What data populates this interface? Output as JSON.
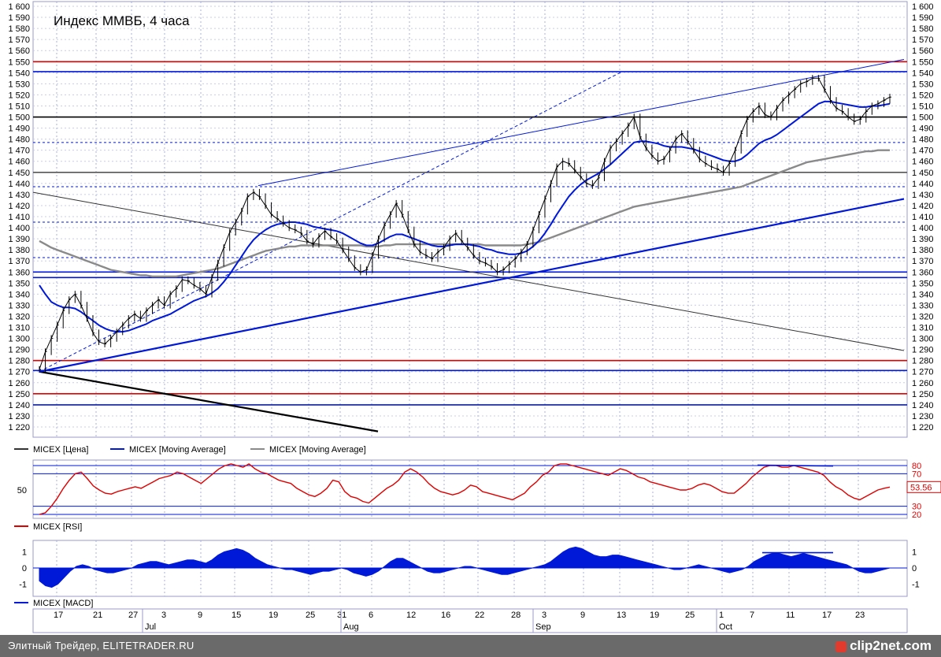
{
  "chart_data": [
    {
      "type": "line",
      "title": "Индекс ММВБ, 4 часа",
      "ylim": [
        1215,
        1600
      ],
      "yticks": [
        1220,
        1230,
        1240,
        1250,
        1260,
        1270,
        1280,
        1290,
        1300,
        1310,
        1320,
        1330,
        1340,
        1350,
        1360,
        1370,
        1380,
        1390,
        1400,
        1410,
        1420,
        1430,
        1440,
        1450,
        1460,
        1470,
        1480,
        1490,
        1500,
        1510,
        1520,
        1530,
        1540,
        1550,
        1560,
        1570,
        1580,
        1590,
        1600
      ],
      "x_ticks": [
        "17",
        "21",
        "27",
        "3",
        "9",
        "15",
        "19",
        "25",
        "31",
        "6",
        "12",
        "16",
        "22",
        "28",
        "3",
        "9",
        "13",
        "19",
        "25",
        "1",
        "7",
        "11",
        "17",
        "23"
      ],
      "months": [
        "Jul",
        "Aug",
        "Sep",
        "Oct"
      ],
      "grid": true,
      "legend": [
        "MICEX [Цена]",
        "MICEX [Moving Average]",
        "MICEX [Moving Average]"
      ],
      "series": [
        {
          "name": "MICEX [Цена]",
          "color": "#000000",
          "values": [
            1272,
            1288,
            1300,
            1312,
            1325,
            1335,
            1340,
            1330,
            1318,
            1305,
            1297,
            1295,
            1300,
            1306,
            1312,
            1318,
            1322,
            1318,
            1325,
            1330,
            1335,
            1330,
            1340,
            1345,
            1353,
            1352,
            1348,
            1345,
            1340,
            1355,
            1368,
            1382,
            1396,
            1405,
            1415,
            1428,
            1432,
            1428,
            1420,
            1412,
            1408,
            1404,
            1400,
            1398,
            1395,
            1388,
            1385,
            1392,
            1397,
            1392,
            1388,
            1380,
            1372,
            1364,
            1360,
            1362,
            1375,
            1390,
            1402,
            1412,
            1422,
            1412,
            1398,
            1385,
            1378,
            1375,
            1372,
            1378,
            1382,
            1390,
            1395,
            1388,
            1382,
            1375,
            1370,
            1368,
            1365,
            1360,
            1362,
            1367,
            1372,
            1378,
            1385,
            1398,
            1412,
            1426,
            1440,
            1455,
            1460,
            1458,
            1452,
            1446,
            1440,
            1438,
            1445,
            1460,
            1472,
            1478,
            1485,
            1492,
            1500,
            1482,
            1472,
            1465,
            1460,
            1462,
            1470,
            1480,
            1485,
            1478,
            1470,
            1462,
            1458,
            1455,
            1453,
            1450,
            1458,
            1470,
            1485,
            1498,
            1505,
            1510,
            1502,
            1500,
            1508,
            1515,
            1520,
            1525,
            1530,
            1532,
            1535,
            1535,
            1525,
            1515,
            1508,
            1505,
            1500,
            1496,
            1498,
            1505,
            1510,
            1512,
            1515,
            1518
          ]
        },
        {
          "name": "MICEX [Moving Average]",
          "color": "#0018d8",
          "values": [
            1348,
            1340,
            1333,
            1330,
            1328,
            1328,
            1327,
            1324,
            1320,
            1316,
            1312,
            1309,
            1307,
            1306,
            1306,
            1307,
            1309,
            1311,
            1313,
            1316,
            1318,
            1320,
            1322,
            1325,
            1328,
            1331,
            1334,
            1336,
            1338,
            1341,
            1345,
            1351,
            1358,
            1366,
            1374,
            1382,
            1389,
            1394,
            1398,
            1401,
            1403,
            1404,
            1405,
            1405,
            1404,
            1403,
            1401,
            1400,
            1399,
            1398,
            1397,
            1395,
            1392,
            1389,
            1386,
            1384,
            1384,
            1386,
            1389,
            1392,
            1394,
            1394,
            1392,
            1390,
            1388,
            1386,
            1384,
            1383,
            1383,
            1384,
            1385,
            1385,
            1385,
            1384,
            1383,
            1381,
            1380,
            1378,
            1377,
            1376,
            1376,
            1377,
            1379,
            1383,
            1388,
            1395,
            1403,
            1412,
            1420,
            1428,
            1434,
            1439,
            1443,
            1446,
            1449,
            1453,
            1457,
            1462,
            1467,
            1472,
            1477,
            1478,
            1478,
            1477,
            1476,
            1474,
            1473,
            1473,
            1473,
            1472,
            1471,
            1469,
            1467,
            1465,
            1463,
            1461,
            1460,
            1460,
            1462,
            1466,
            1471,
            1476,
            1479,
            1481,
            1484,
            1488,
            1492,
            1496,
            1500,
            1504,
            1508,
            1512,
            1514,
            1514,
            1513,
            1512,
            1511,
            1510,
            1509,
            1509,
            1510,
            1510,
            1511,
            1512
          ]
        },
        {
          "name": "MICEX [Moving Average]",
          "color": "#8a8a8a",
          "values": [
            1388,
            1385,
            1382,
            1380,
            1378,
            1376,
            1374,
            1372,
            1370,
            1368,
            1366,
            1364,
            1362,
            1361,
            1360,
            1359,
            1358,
            1357,
            1357,
            1356,
            1356,
            1356,
            1356,
            1356,
            1357,
            1358,
            1359,
            1360,
            1361,
            1362,
            1363,
            1365,
            1367,
            1369,
            1371,
            1373,
            1375,
            1377,
            1379,
            1380,
            1381,
            1382,
            1383,
            1383,
            1384,
            1384,
            1384,
            1384,
            1384,
            1384,
            1384,
            1384,
            1384,
            1384,
            1384,
            1383,
            1383,
            1383,
            1384,
            1384,
            1385,
            1385,
            1385,
            1385,
            1385,
            1385,
            1385,
            1385,
            1385,
            1385,
            1385,
            1385,
            1385,
            1385,
            1385,
            1384,
            1384,
            1384,
            1384,
            1384,
            1384,
            1384,
            1385,
            1386,
            1387,
            1389,
            1391,
            1393,
            1395,
            1397,
            1399,
            1401,
            1403,
            1405,
            1407,
            1409,
            1411,
            1413,
            1415,
            1417,
            1419,
            1420,
            1421,
            1422,
            1423,
            1424,
            1425,
            1426,
            1427,
            1428,
            1429,
            1430,
            1431,
            1432,
            1433,
            1434,
            1435,
            1436,
            1437,
            1439,
            1441,
            1443,
            1445,
            1447,
            1449,
            1451,
            1453,
            1455,
            1457,
            1459,
            1460,
            1461,
            1462,
            1463,
            1464,
            1465,
            1466,
            1467,
            1468,
            1469,
            1469,
            1470,
            1470,
            1470
          ]
        }
      ],
      "annotations": {
        "horizontal_lines": [
          {
            "y": 1550,
            "color": "#e00000"
          },
          {
            "y": 1541,
            "color": "#0018d8"
          },
          {
            "y": 1500,
            "color": "#000000"
          },
          {
            "y": 1477,
            "color": "#0018d8",
            "dashed": true
          },
          {
            "y": 1450,
            "color": "#555555"
          },
          {
            "y": 1437,
            "color": "#0018d8",
            "dashed": true
          },
          {
            "y": 1405,
            "color": "#0018d8",
            "dashed": true
          },
          {
            "y": 1373,
            "color": "#0018d8",
            "dashed": true
          },
          {
            "y": 1360,
            "color": "#0018d8"
          },
          {
            "y": 1355,
            "color": "#0018d8"
          },
          {
            "y": 1280,
            "color": "#e00000"
          },
          {
            "y": 1271,
            "color": "#0018d8"
          },
          {
            "y": 1250,
            "color": "#e00000"
          },
          {
            "y": 1240,
            "color": "#0018d8"
          }
        ]
      }
    },
    {
      "type": "line",
      "ylim": [
        15,
        85
      ],
      "left_ticks": [
        50
      ],
      "right_ticks": [
        80,
        70,
        30,
        20
      ],
      "last_value_label": "53.56",
      "legend": [
        "MICEX [RSI]"
      ],
      "series": [
        {
          "name": "MICEX [RSI]",
          "color": "#e00000",
          "values": [
            20,
            22,
            30,
            40,
            52,
            62,
            70,
            72,
            64,
            55,
            50,
            46,
            45,
            48,
            50,
            52,
            54,
            52,
            56,
            60,
            64,
            66,
            68,
            72,
            70,
            66,
            62,
            58,
            64,
            70,
            76,
            80,
            82,
            80,
            78,
            82,
            76,
            72,
            70,
            66,
            62,
            60,
            58,
            52,
            48,
            44,
            42,
            46,
            52,
            62,
            60,
            48,
            42,
            40,
            36,
            34,
            40,
            46,
            52,
            56,
            62,
            72,
            76,
            72,
            66,
            58,
            52,
            48,
            46,
            44,
            46,
            50,
            56,
            54,
            48,
            46,
            44,
            42,
            40,
            38,
            42,
            46,
            54,
            60,
            68,
            72,
            80,
            82,
            82,
            80,
            78,
            76,
            74,
            72,
            70,
            68,
            72,
            76,
            74,
            70,
            66,
            64,
            60,
            58,
            56,
            54,
            52,
            50,
            50,
            52,
            56,
            58,
            56,
            52,
            48,
            46,
            46,
            52,
            58,
            66,
            72,
            78,
            80,
            80,
            78,
            78,
            80,
            78,
            76,
            74,
            72,
            68,
            60,
            54,
            50,
            44,
            40,
            38,
            42,
            46,
            50,
            52,
            53.56
          ]
        }
      ],
      "annotation": {
        "line": [
          90,
          150
        ],
        "color": "#0018d8"
      }
    },
    {
      "type": "area",
      "ylim": [
        -1.3,
        1.5
      ],
      "left_ticks": [
        1,
        0,
        -1
      ],
      "right_ticks": [
        1,
        0,
        -1
      ],
      "legend": [
        "MICEX [MACD]"
      ],
      "series": [
        {
          "name": "MICEX [MACD]",
          "color": "#0018d8",
          "values": [
            -0.8,
            -1.1,
            -1.2,
            -1.0,
            -0.6,
            -0.2,
            0.1,
            0.2,
            0.1,
            -0.1,
            -0.2,
            -0.3,
            -0.3,
            -0.2,
            -0.1,
            0.0,
            0.2,
            0.3,
            0.4,
            0.4,
            0.3,
            0.2,
            0.3,
            0.4,
            0.5,
            0.5,
            0.4,
            0.3,
            0.5,
            0.8,
            1.0,
            1.1,
            1.2,
            1.1,
            0.9,
            0.6,
            0.4,
            0.2,
            0.1,
            0.0,
            -0.1,
            -0.1,
            -0.2,
            -0.3,
            -0.4,
            -0.3,
            -0.2,
            -0.2,
            -0.1,
            0.0,
            -0.1,
            -0.3,
            -0.4,
            -0.5,
            -0.4,
            -0.2,
            0.1,
            0.4,
            0.6,
            0.6,
            0.4,
            0.2,
            0.0,
            -0.2,
            -0.3,
            -0.3,
            -0.2,
            -0.1,
            0.0,
            0.1,
            0.1,
            0.0,
            -0.1,
            -0.2,
            -0.3,
            -0.4,
            -0.4,
            -0.3,
            -0.2,
            -0.1,
            0.0,
            0.1,
            0.2,
            0.4,
            0.7,
            1.0,
            1.2,
            1.3,
            1.2,
            1.0,
            0.8,
            0.7,
            0.7,
            0.8,
            0.8,
            0.7,
            0.6,
            0.5,
            0.4,
            0.3,
            0.2,
            0.1,
            0.0,
            -0.1,
            -0.1,
            0.0,
            0.1,
            0.2,
            0.1,
            0.0,
            -0.1,
            -0.2,
            -0.3,
            -0.2,
            -0.1,
            0.1,
            0.4,
            0.6,
            0.8,
            0.9,
            0.9,
            0.8,
            0.7,
            0.8,
            0.9,
            0.8,
            0.7,
            0.6,
            0.5,
            0.4,
            0.3,
            0.2,
            0.0,
            -0.2,
            -0.3,
            -0.3,
            -0.2,
            -0.1,
            0.0
          ]
        }
      ]
    }
  ],
  "footer": {
    "text": "Элитный Трейдер, ELITETRADER.RU",
    "logo": "clip2net.com"
  }
}
